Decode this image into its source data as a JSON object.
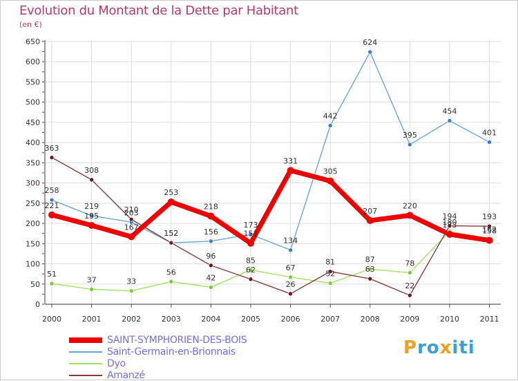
{
  "title": "Evolution du Montant de la Dette par Habitant",
  "unit": "(en €)",
  "logo": {
    "letters": [
      "P",
      "r",
      "o",
      "x",
      "i",
      "t",
      "i"
    ],
    "colors": [
      "#f0a020",
      "#3aa0d8",
      "#3aa0d8",
      "#f0a020",
      "#3aa0d8",
      "#3aa0d8",
      "#3aa0d8"
    ]
  },
  "chart_data": {
    "type": "line",
    "x": [
      "2000",
      "2001",
      "2002",
      "2003",
      "2004",
      "2005",
      "2006",
      "2007",
      "2008",
      "2009",
      "2010",
      "2011"
    ],
    "yticks": [
      0,
      50,
      100,
      150,
      200,
      250,
      300,
      350,
      400,
      450,
      500,
      550,
      600,
      650
    ],
    "ylim": [
      0,
      650
    ],
    "grid": true,
    "legend_position": "bottom-left",
    "series": [
      {
        "name": "SAINT-SYMPHORIEN-DES-BOIS",
        "values": [
          221,
          195,
          167,
          253,
          218,
          151,
          331,
          305,
          207,
          220,
          173,
          158
        ],
        "labels": [
          "221",
          "195",
          "167",
          "253",
          "218",
          "151",
          "331",
          "305",
          "207",
          "220",
          "173",
          "158"
        ],
        "color": "#ee0000",
        "marker": "#ee0000"
      },
      {
        "name": "Saint-Germain-en-Brionnais",
        "values": [
          258,
          219,
          203,
          152,
          156,
          173,
          134,
          442,
          624,
          395,
          454,
          401
        ],
        "labels": [
          "258",
          "219",
          "203",
          "152",
          "156",
          "173",
          "134",
          "442",
          "624",
          "395",
          "454",
          "401"
        ],
        "color": "#6aa6d8",
        "marker": "#3c7fc6"
      },
      {
        "name": "Dyo",
        "values": [
          51,
          37,
          33,
          56,
          42,
          85,
          67,
          52,
          87,
          78,
          180,
          162
        ],
        "labels": [
          "51",
          "37",
          "33",
          "56",
          "42",
          "85",
          "67",
          "52",
          "87",
          "78",
          "180",
          "162"
        ],
        "color": "#a6e06a",
        "marker": "#7ccb38"
      },
      {
        "name": "Amanzé",
        "values": [
          363,
          308,
          210,
          152,
          96,
          62,
          26,
          81,
          63,
          22,
          194,
          193
        ],
        "labels": [
          "363",
          "308",
          "210",
          "152",
          "96",
          "62",
          "26",
          "81",
          "63",
          "22",
          "194",
          "193"
        ],
        "color": "#8a3a3a",
        "marker": "#6a1a1a"
      }
    ]
  }
}
